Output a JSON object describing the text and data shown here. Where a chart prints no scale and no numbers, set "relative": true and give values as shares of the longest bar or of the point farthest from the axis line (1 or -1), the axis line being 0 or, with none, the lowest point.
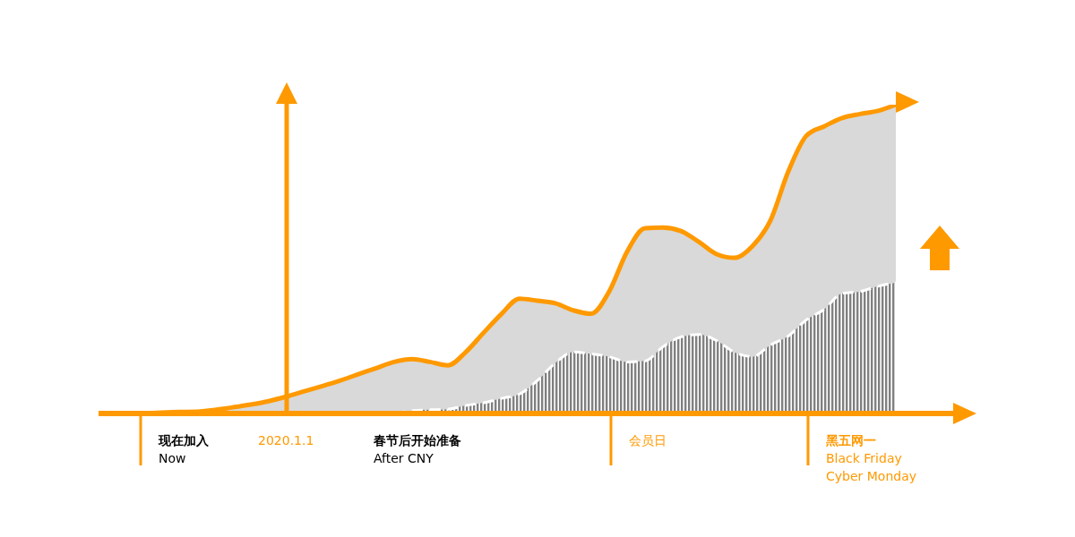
{
  "chart_data": {
    "type": "area",
    "relative": true,
    "categories": [
      null,
      null,
      null,
      null,
      null,
      null,
      null,
      null,
      null,
      null,
      null,
      null,
      null,
      null,
      null,
      null,
      null,
      null,
      null,
      null,
      null,
      null,
      null,
      null,
      null,
      null,
      null,
      null,
      null,
      null,
      null,
      null,
      null,
      null,
      null,
      null,
      null,
      null,
      null,
      null,
      null,
      null,
      null
    ],
    "series": [
      {
        "color": "#ff9900",
        "values": [
          0,
          0.003,
          0.005,
          0.006,
          0.012,
          0.02,
          0.029,
          0.04,
          0.055,
          0.072,
          0.089,
          0.107,
          0.127,
          0.147,
          0.167,
          0.176,
          0.167,
          0.156,
          0.199,
          0.262,
          0.323,
          0.372,
          0.365,
          0.357,
          0.334,
          0.323,
          0.395,
          0.524,
          0.6,
          0.602,
          0.591,
          0.556,
          0.516,
          0.504,
          0.542,
          0.625,
          0.784,
          0.899,
          0.93,
          0.957,
          0.97,
          0.98,
          1
        ]
      },
      {
        "color": "#808080",
        "line_style": "dashed",
        "values": [
          null,
          null,
          null,
          null,
          null,
          null,
          null,
          null,
          null,
          null,
          null,
          null,
          null,
          null,
          0,
          0.009,
          0.012,
          0.014,
          0.026,
          0.035,
          0.049,
          0.063,
          0.107,
          0.164,
          0.199,
          0.193,
          0.184,
          0.167,
          0.17,
          0.216,
          0.248,
          0.256,
          0.236,
          0.198,
          0.184,
          0.222,
          0.251,
          0.303,
          0.337,
          0.389,
          0.395,
          0.412,
          0.424
        ]
      }
    ],
    "annotations": [
      "现在加入\nNow",
      "2020.1.1",
      "春节后开始准备\nAfter CNY",
      "会员日",
      "黑五网一\nBlack Friday\nCyber Monday"
    ],
    "line_style": "solid"
  }
}
